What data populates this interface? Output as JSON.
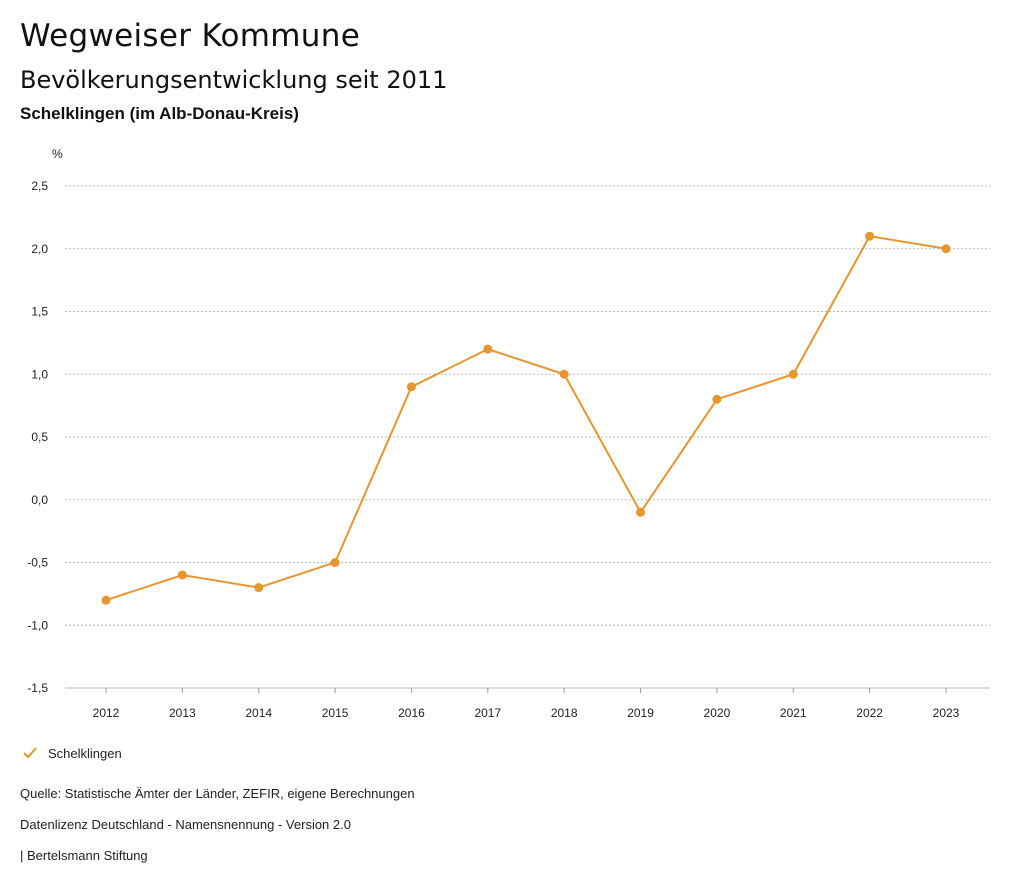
{
  "header": {
    "title": "Wegweiser Kommune",
    "subtitle": "Bevölkerungsentwicklung seit 2011",
    "place": "Schelklingen (im Alb-Donau-Kreis)"
  },
  "chart_data": {
    "type": "line",
    "unit": "%",
    "x": [
      "2012",
      "2013",
      "2014",
      "2015",
      "2016",
      "2017",
      "2018",
      "2019",
      "2020",
      "2021",
      "2022",
      "2023"
    ],
    "series": [
      {
        "name": "Schelklingen",
        "color": "#e8952e",
        "values": [
          -0.8,
          -0.6,
          -0.7,
          -0.5,
          0.9,
          1.2,
          1.0,
          -0.1,
          0.8,
          1.0,
          2.1,
          2.0
        ]
      }
    ],
    "ylim": [
      -1.5,
      2.5
    ],
    "yticks": [
      "2,5",
      "2,0",
      "1,5",
      "1,0",
      "0,5",
      "0,0",
      "-0,5",
      "-1,0",
      "-1,5"
    ],
    "ytick_values": [
      2.5,
      2.0,
      1.5,
      1.0,
      0.5,
      0.0,
      -0.5,
      -1.0,
      -1.5
    ],
    "grid": true,
    "legend": "bottom-left"
  },
  "footer": {
    "source": "Quelle: Statistische Ämter der Länder, ZEFIR, eigene Berechnungen",
    "license": "Datenlizenz Deutschland - Namensnennung - Version 2.0",
    "publisher": "| Bertelsmann Stiftung"
  }
}
